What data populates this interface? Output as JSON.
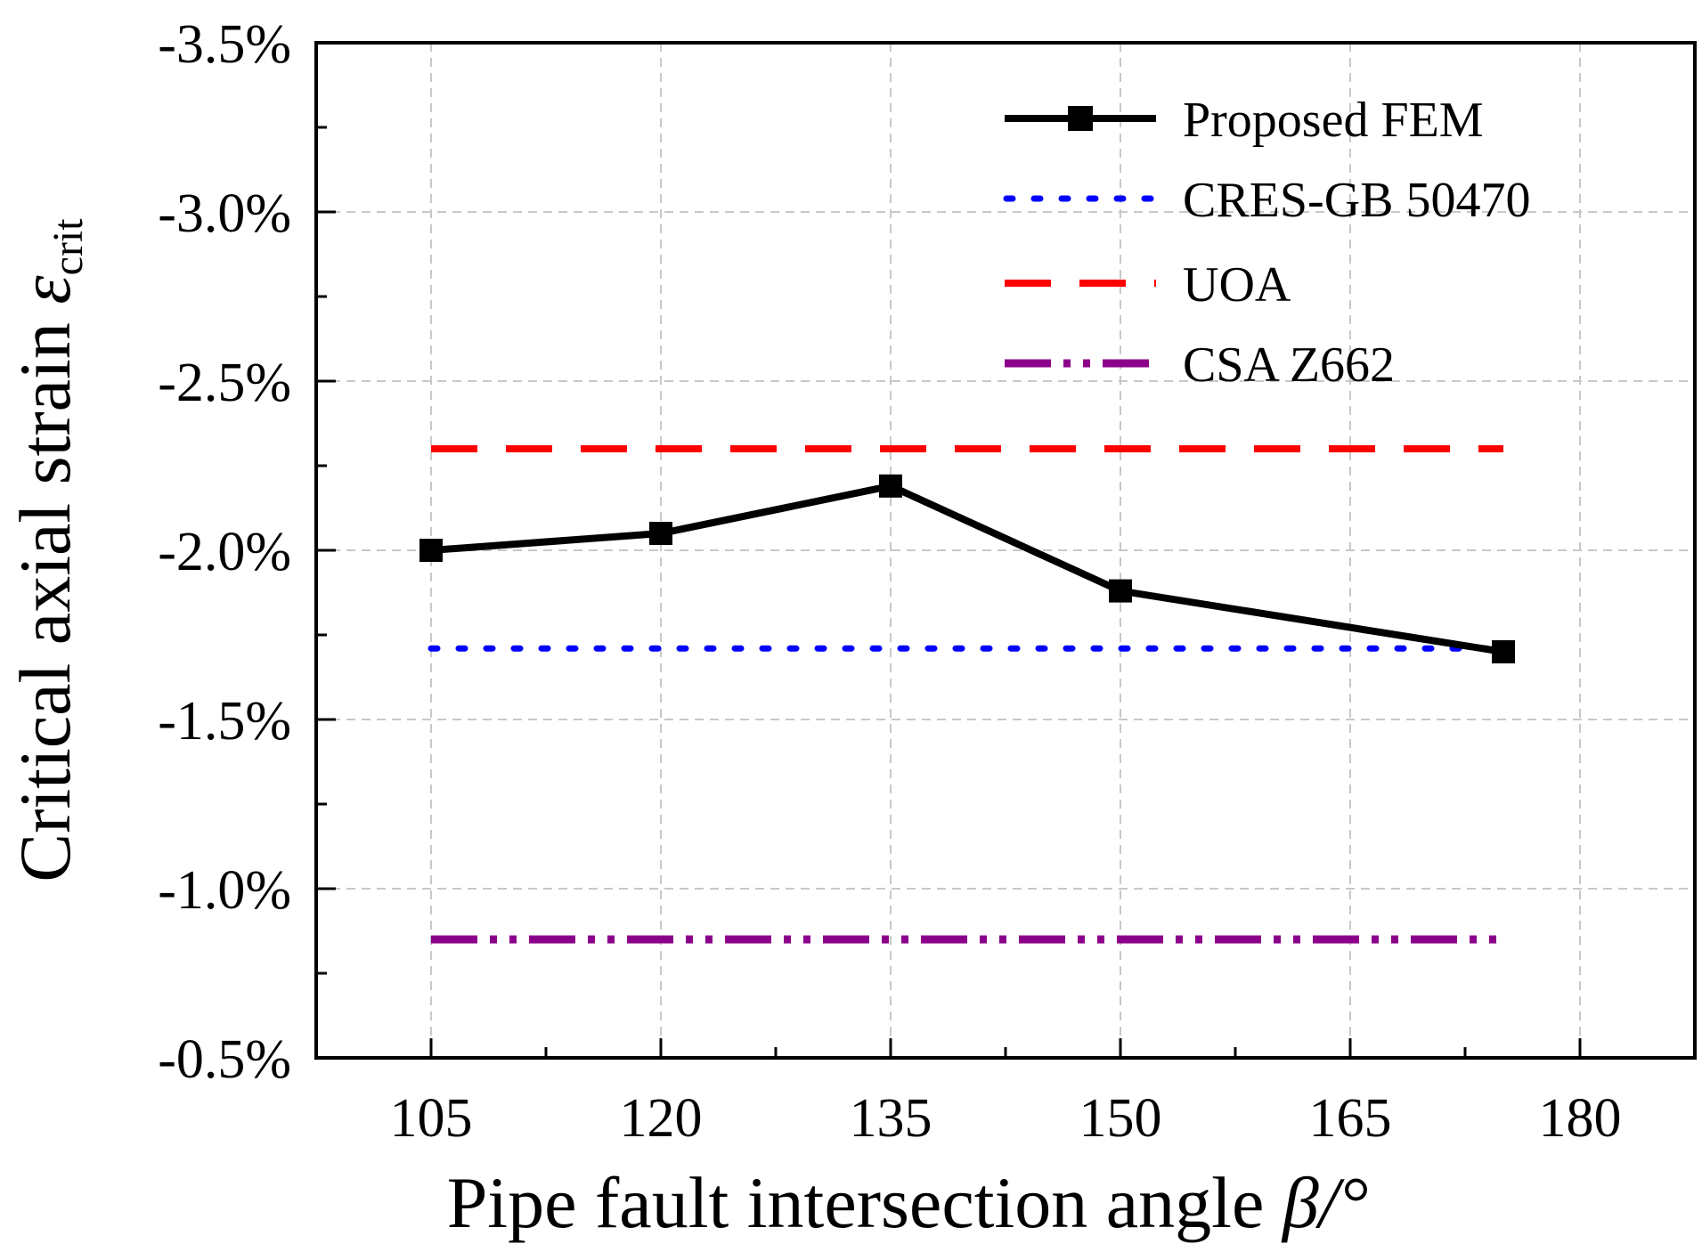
{
  "chart_data": {
    "type": "line",
    "title": "",
    "xlabel": "Pipe fault intersection angle",
    "xlabel_symbol": "β/°",
    "ylabel": "Critical axial strain",
    "ylabel_symbol": "ε",
    "ylabel_subscript": "crit",
    "x_ticks": [
      "105",
      "120",
      "135",
      "150",
      "165",
      "180"
    ],
    "x_tick_values": [
      105,
      120,
      135,
      150,
      165,
      180
    ],
    "y_ticks": [
      "-0.5%",
      "-1.0%",
      "-1.5%",
      "-2.0%",
      "-2.5%",
      "-3.0%",
      "-3.5%"
    ],
    "y_tick_values": [
      0.5,
      1.0,
      1.5,
      2.0,
      2.5,
      3.0,
      3.5
    ],
    "xlim": [
      97.5,
      187.5
    ],
    "ylim": [
      0.5,
      3.5
    ],
    "grid": true,
    "legend_position": "top-right",
    "series": [
      {
        "name": "Proposed FEM",
        "style": "solid-square-markers",
        "color": "#000000",
        "x": [
          105,
          120,
          135,
          150,
          175
        ],
        "values": [
          2.0,
          2.05,
          2.19,
          1.88,
          1.7
        ]
      },
      {
        "name": "CRES-GB 50470",
        "style": "dotted",
        "color": "#0000ff",
        "x": [
          105,
          175
        ],
        "values": [
          1.71,
          1.71
        ]
      },
      {
        "name": "UOA",
        "style": "dashed",
        "color": "#ff0000",
        "x": [
          105,
          175
        ],
        "values": [
          2.3,
          2.3
        ]
      },
      {
        "name": "CSA Z662",
        "style": "dash-dot-dot",
        "color": "#8b008b",
        "x": [
          105,
          175
        ],
        "values": [
          0.85,
          0.85
        ]
      }
    ]
  }
}
